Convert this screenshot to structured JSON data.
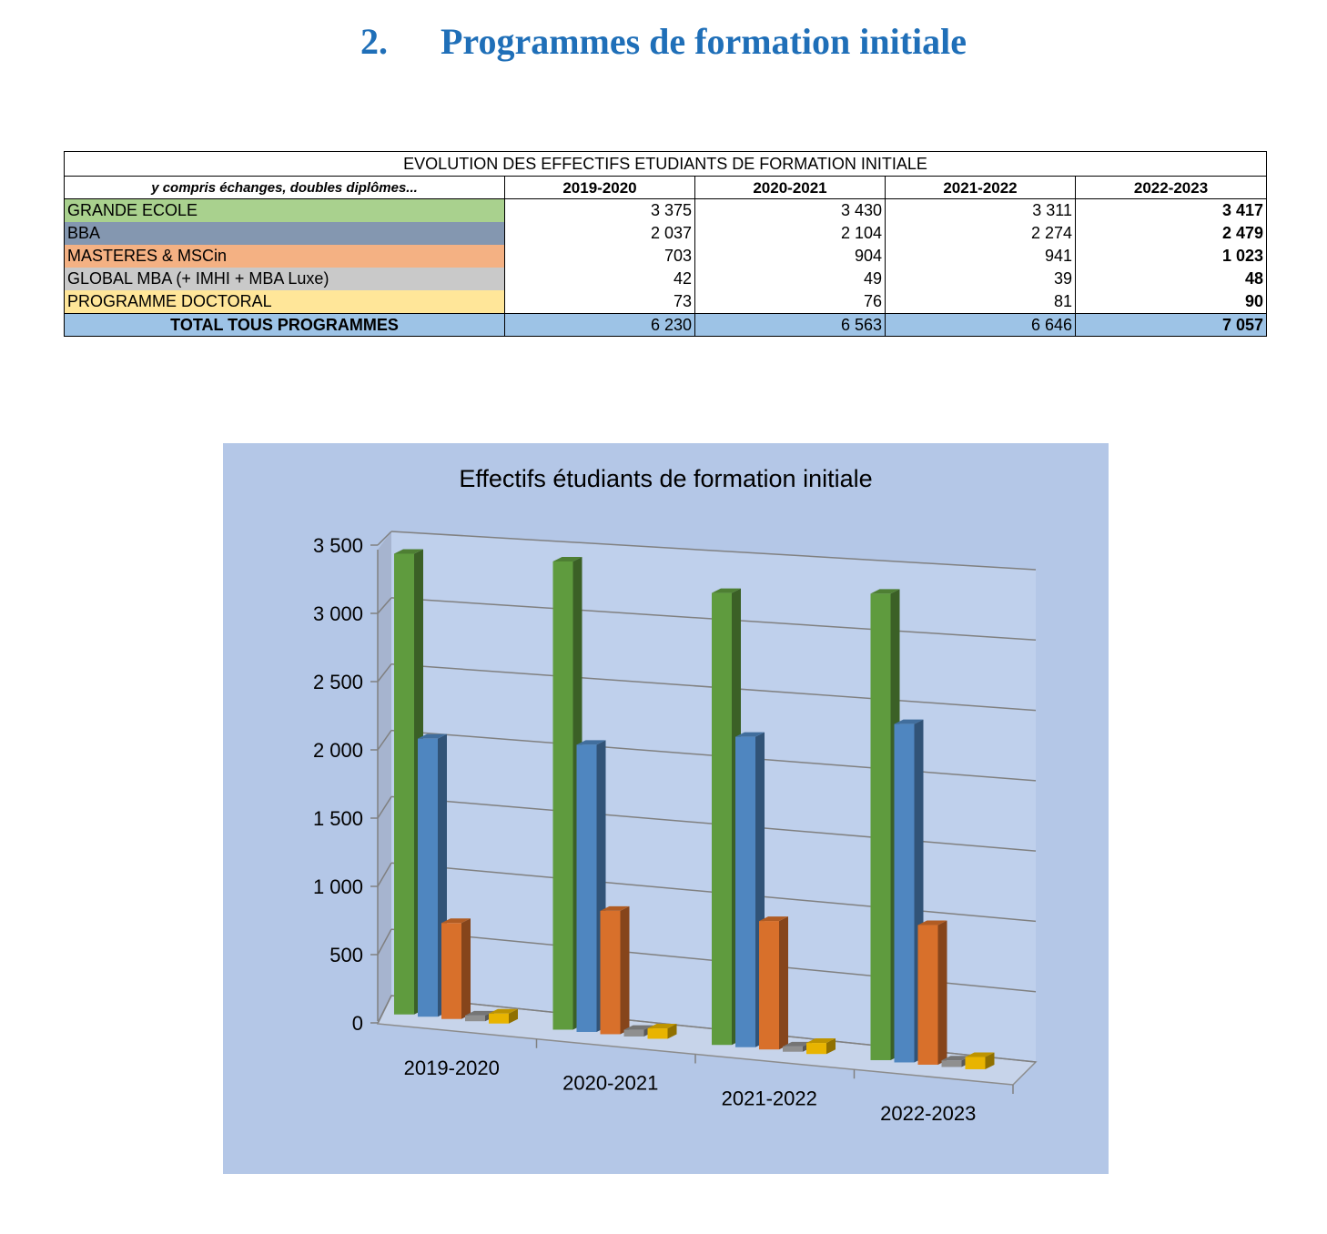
{
  "section": {
    "number": "2.",
    "title": "Programmes de formation initiale"
  },
  "table": {
    "caption": "EVOLUTION DES EFFECTIFS ETUDIANTS DE FORMATION INITIALE",
    "note": "y compris échanges, doubles diplômes...",
    "years": [
      "2019-2020",
      "2020-2021",
      "2021-2022",
      "2022-2023"
    ],
    "rows": [
      {
        "label": "GRANDE ECOLE",
        "color": "#a9d18e",
        "values": [
          "3 375",
          "3 430",
          "3 311",
          "3 417"
        ]
      },
      {
        "label": "BBA",
        "color": "#8497b0",
        "values": [
          "2 037",
          "2 104",
          "2 274",
          "2 479"
        ]
      },
      {
        "label": "MASTERES & MSCin",
        "color": "#f4b183",
        "values": [
          "703",
          "904",
          "941",
          "1 023"
        ]
      },
      {
        "label": "GLOBAL MBA (+ IMHI + MBA Luxe)",
        "color": "#c9c9c9",
        "values": [
          "42",
          "49",
          "39",
          "48"
        ]
      },
      {
        "label": "PROGRAMME DOCTORAL",
        "color": "#ffe699",
        "values": [
          "73",
          "76",
          "81",
          "90"
        ]
      }
    ],
    "total": {
      "label": "TOTAL TOUS PROGRAMMES",
      "values": [
        "6 230",
        "6 563",
        "6 646",
        "7 057"
      ]
    }
  },
  "chart_data": {
    "type": "bar",
    "title": "Effectifs étudiants de formation initiale",
    "categories": [
      "2019-2020",
      "2020-2021",
      "2021-2022",
      "2022-2023"
    ],
    "series": [
      {
        "color": "#5f9b3e",
        "values": [
          3375,
          3430,
          3311,
          3417
        ]
      },
      {
        "color": "#4f86c0",
        "values": [
          2037,
          2104,
          2274,
          2479
        ]
      },
      {
        "color": "#d8702b",
        "values": [
          703,
          904,
          941,
          1023
        ]
      },
      {
        "color": "#8f8f8f",
        "values": [
          42,
          49,
          39,
          48
        ]
      },
      {
        "color": "#e8b400",
        "values": [
          73,
          76,
          81,
          90
        ]
      }
    ],
    "ylim": [
      0,
      3500
    ],
    "yticks": [
      "0",
      "500",
      "1 000",
      "1 500",
      "2 000",
      "2 500",
      "3 000",
      "3 500"
    ],
    "grid": true,
    "legend": "none"
  }
}
